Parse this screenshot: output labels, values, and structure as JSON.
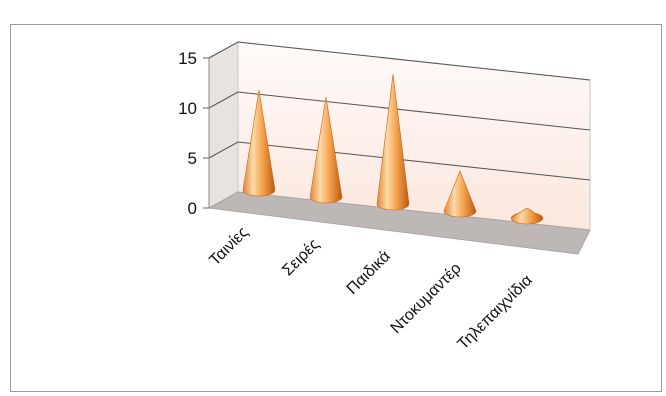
{
  "chart_data": {
    "type": "bar",
    "shape": "3d-cone",
    "categories": [
      "Ταινίες",
      "Σειρές",
      "Παιδικά",
      "Ντοκυμαντέρ",
      "Τηλεπαιχνίδια"
    ],
    "values": [
      10,
      10,
      13,
      4,
      1
    ],
    "ylim": [
      0,
      15
    ],
    "yticks": [
      "0",
      "5",
      "10",
      "15"
    ],
    "grid": true,
    "legend": "none",
    "colors": {
      "cone_light": "#fcd9a8",
      "cone_mid": "#f5a04a",
      "cone_dark": "#c8661a",
      "back_wall": "#fdeee6",
      "floor": "#bdb8b6",
      "side_wall": "#e6e3e1",
      "gridline": "#555555"
    }
  }
}
